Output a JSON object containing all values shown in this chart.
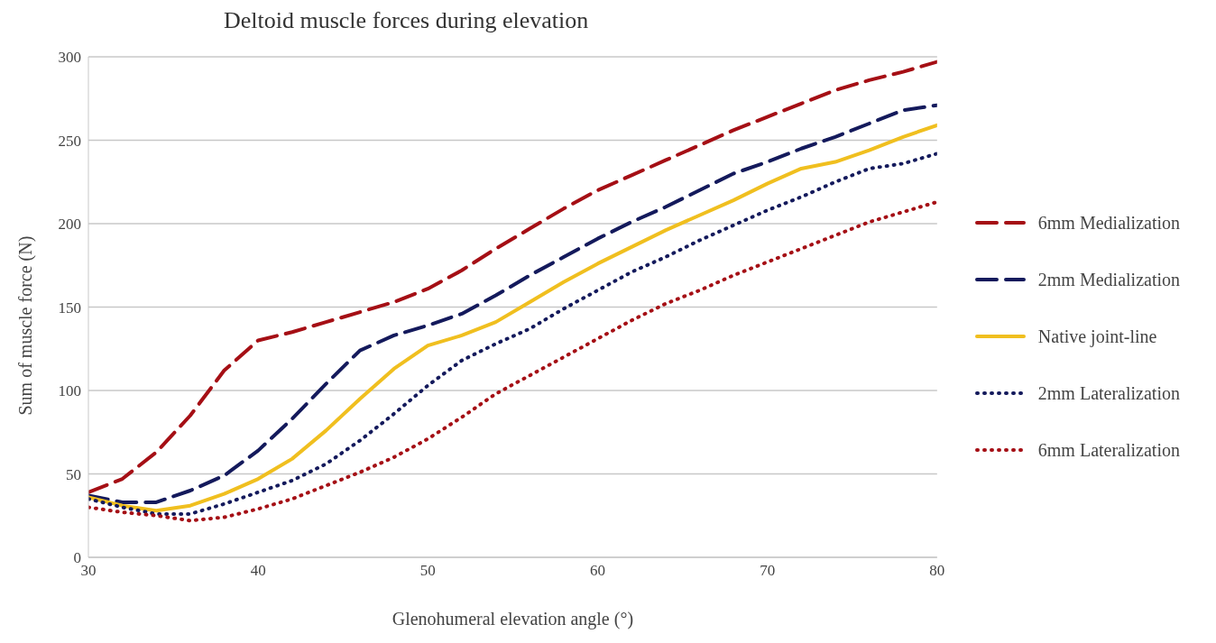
{
  "chart_data": {
    "type": "line",
    "title": "Deltoid muscle forces during elevation",
    "xlabel": "Glenohumeral elevation angle (°)",
    "ylabel": "Sum of muscle force (N)",
    "x": [
      30,
      32,
      34,
      36,
      38,
      40,
      42,
      44,
      46,
      48,
      50,
      52,
      54,
      56,
      58,
      60,
      62,
      64,
      66,
      68,
      70,
      72,
      74,
      76,
      78,
      80
    ],
    "xlim": [
      30,
      80
    ],
    "xticks": [
      30,
      40,
      50,
      60,
      70,
      80
    ],
    "ylim": [
      0,
      300
    ],
    "yticks": [
      0,
      50,
      100,
      150,
      200,
      250,
      300
    ],
    "grid": "y",
    "legend": "right",
    "marker": "none",
    "series": [
      {
        "name": "6mm Medialization",
        "color": "#a50f15",
        "line_style": "dashed",
        "values": [
          39,
          47,
          63,
          85,
          112,
          130,
          135,
          141,
          147,
          153,
          161,
          172,
          185,
          197,
          209,
          220,
          229,
          238,
          247,
          256,
          264,
          272,
          280,
          286,
          291,
          297
        ]
      },
      {
        "name": "2mm Medialization",
        "color": "#141a5c",
        "line_style": "dashed",
        "values": [
          37,
          33,
          33,
          40,
          49,
          64,
          83,
          104,
          124,
          133,
          139,
          146,
          157,
          169,
          180,
          191,
          201,
          210,
          220,
          230,
          237,
          245,
          252,
          260,
          268,
          271
        ]
      },
      {
        "name": "Native joint-line",
        "color": "#f0bf1f",
        "line_style": "solid",
        "values": [
          36,
          31,
          28,
          31,
          38,
          47,
          59,
          76,
          95,
          113,
          127,
          133,
          141,
          153,
          165,
          176,
          186,
          196,
          205,
          214,
          224,
          233,
          237,
          244,
          252,
          259
        ]
      },
      {
        "name": "2mm Lateralization",
        "color": "#141a5c",
        "line_style": "dotted",
        "values": [
          35,
          30,
          26,
          26,
          32,
          39,
          46,
          56,
          70,
          86,
          103,
          118,
          128,
          137,
          149,
          160,
          171,
          180,
          190,
          199,
          208,
          216,
          225,
          233,
          236,
          242
        ]
      },
      {
        "name": "6mm Lateralization",
        "color": "#a50f15",
        "line_style": "dotted",
        "values": [
          30,
          27,
          25,
          22,
          24,
          29,
          35,
          43,
          51,
          60,
          71,
          84,
          98,
          109,
          120,
          131,
          142,
          152,
          160,
          169,
          177,
          185,
          193,
          201,
          207,
          213
        ]
      }
    ]
  }
}
